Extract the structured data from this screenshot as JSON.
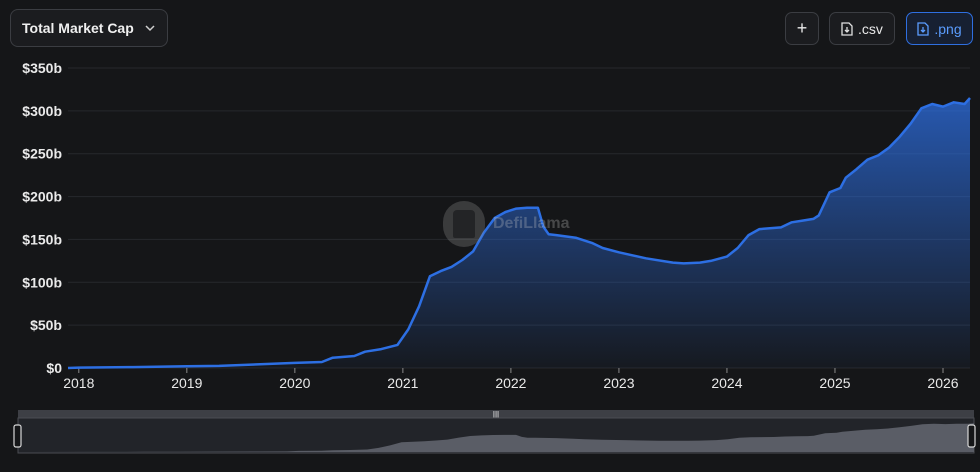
{
  "toolbar": {
    "metric_label": "Total Market Cap",
    "chevron_icon": "chevron-down-icon",
    "add_label": "+",
    "csv_label": ".csv",
    "png_label": ".png",
    "download_icon": "file-download-icon"
  },
  "watermark": {
    "text": "DefiLlama",
    "icon": "llama-logo"
  },
  "colors": {
    "line": "#2d6fe3",
    "accent": "#5b9dff",
    "background": "#151618"
  },
  "chart_data": {
    "type": "area",
    "title": "",
    "xlabel": "",
    "ylabel": "",
    "x_tick_labels": [
      "2018",
      "2019",
      "2020",
      "2021",
      "2022",
      "2023",
      "2024",
      "2025",
      "2026"
    ],
    "y_tick_labels": [
      "$0",
      "$50b",
      "$100b",
      "$150b",
      "$200b",
      "$250b",
      "$300b",
      "$350b"
    ],
    "ylim": [
      0,
      350
    ],
    "xlim": [
      2017.9,
      2026.25
    ],
    "unit": "billions USD",
    "grid": true,
    "legend": "none",
    "series": [
      {
        "x": [
          2017.9,
          2018.0,
          2018.5,
          2019.0,
          2019.3,
          2019.6,
          2020.0,
          2020.25,
          2020.35,
          2020.55,
          2020.65,
          2020.8,
          2020.95,
          2021.05,
          2021.15,
          2021.25,
          2021.35,
          2021.45,
          2021.55,
          2021.65,
          2021.75,
          2021.85,
          2021.95,
          2022.05,
          2022.15,
          2022.25,
          2022.3,
          2022.35,
          2022.42,
          2022.6,
          2022.75,
          2022.85,
          2023.0,
          2023.25,
          2023.5,
          2023.6,
          2023.75,
          2023.85,
          2024.0,
          2024.1,
          2024.2,
          2024.3,
          2024.5,
          2024.6,
          2024.7,
          2024.8,
          2024.85,
          2024.95,
          2025.05,
          2025.1,
          2025.2,
          2025.3,
          2025.4,
          2025.5,
          2025.6,
          2025.7,
          2025.8,
          2025.9,
          2026.0,
          2026.1,
          2026.2,
          2026.25
        ],
        "values": [
          0,
          0.5,
          1,
          2,
          2.5,
          4,
          6,
          7,
          12,
          14,
          19,
          22,
          27,
          45,
          72,
          107,
          113,
          118,
          126,
          136,
          158,
          175,
          182,
          186,
          187,
          187,
          165,
          156,
          155,
          152,
          146,
          140,
          135,
          128,
          123,
          122,
          123,
          125,
          130,
          140,
          155,
          162,
          164,
          170,
          172,
          174,
          178,
          205,
          210,
          222,
          232,
          243,
          248,
          257,
          270,
          285,
          303,
          308,
          305,
          310,
          308,
          315
        ]
      }
    ]
  }
}
